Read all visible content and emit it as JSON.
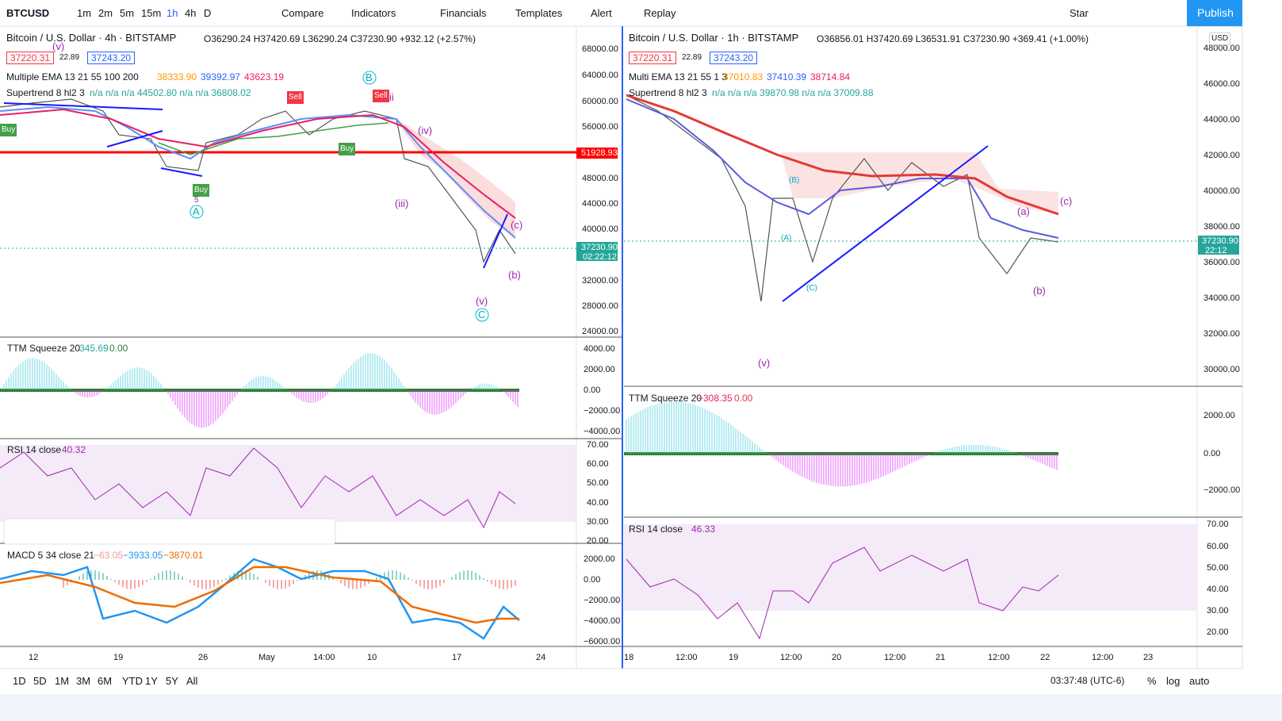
{
  "toolbar": {
    "symbol": "BTCUSD",
    "intervals": [
      "1m",
      "2m",
      "5m",
      "15m",
      "1h",
      "4h",
      "D"
    ],
    "tools": [
      "Compare",
      "Indicators",
      "Financials",
      "Templates",
      "Alert",
      "Replay"
    ],
    "star": "Star",
    "publish": "Publish"
  },
  "left": {
    "header": "Bitcoin / U.S. Dollar · 4h · BITSTAMP",
    "ohlc": "O36290.24 H37420.69 L36290.24 C37230.90 +932.12 (+2.57%)",
    "bid": "37220.31",
    "spread": "22.89",
    "ask": "37243.20",
    "ema": {
      "name": "Multiple EMA 13 21 55 100 200",
      "values": [
        "38333.90",
        "39392.97",
        "43623.19"
      ]
    },
    "supertrend": {
      "name": "Supertrend 8 hl2 3",
      "values": "n/a n/a n/a 44502.80 n/a n/a 36808.02"
    },
    "price_axis": [
      "68000.00",
      "64000.00",
      "60000.00",
      "56000.00",
      "48000.00",
      "44000.00",
      "40000.00",
      "32000.00",
      "28000.00",
      "24000.00"
    ],
    "level_tag": "51928.93",
    "price_tag": "37230.90",
    "countdown": "02:22:12",
    "ttm": {
      "name": "TTM Squeeze 20",
      "values": [
        "345.69",
        "0.00"
      ],
      "axis": [
        "4000.00",
        "2000.00",
        "0.00",
        "−2000.00",
        "−4000.00"
      ]
    },
    "rsi": {
      "name": "RSI 14 close",
      "value": "40.32",
      "axis": [
        "70.00",
        "60.00",
        "50.00",
        "40.00",
        "30.00",
        "20.00"
      ]
    },
    "macd": {
      "name": "MACD 5 34 close 21",
      "values": [
        "−63.05",
        "−3933.05",
        "−3870.01"
      ],
      "axis": [
        "2000.00",
        "0.00",
        "−2000.00",
        "−4000.00",
        "−6000.00"
      ]
    },
    "time_axis": [
      "12",
      "19",
      "26",
      "May",
      "14:00",
      "10",
      "17",
      "24"
    ],
    "annotations": [
      "(v)",
      "B",
      "ii",
      "(iv)",
      "(iii)",
      "(c)",
      "(b)",
      "(v)",
      "C",
      "A",
      "5",
      "Buy",
      "Buy",
      "Buy",
      "Sell",
      "Sell"
    ]
  },
  "right": {
    "header": "Bitcoin / U.S. Dollar · 1h · BITSTAMP",
    "ohlc": "O36856.01 H37420.69 L36531.91 C37230.90 +369.41 (+1.00%)",
    "bid": "37220.31",
    "spread": "22.89",
    "ask": "37243.20",
    "ema": {
      "name": "Multi EMA 13 21 55 1 3",
      "values": [
        "37010.83",
        "37410.39",
        "38714.84"
      ]
    },
    "supertrend": {
      "name": "Supertrend 8 hl2 3",
      "values": "n/a n/a n/a 39870.98 n/a n/a 37009.88"
    },
    "currency": "USD",
    "price_axis": [
      "48000.00",
      "46000.00",
      "44000.00",
      "42000.00",
      "40000.00",
      "38000.00",
      "36000.00",
      "34000.00",
      "32000.00",
      "30000.00"
    ],
    "price_tag": "37230.90",
    "countdown": "22:12",
    "ttm": {
      "name": "TTM Squeeze 20",
      "values": [
        "−308.35",
        "0.00"
      ],
      "axis": [
        "2000.00",
        "0.00",
        "−2000.00"
      ]
    },
    "rsi": {
      "name": "RSI 14 close",
      "value": "46.33",
      "axis": [
        "70.00",
        "60.00",
        "50.00",
        "40.00",
        "30.00",
        "20.00"
      ]
    },
    "time_axis": [
      "18",
      "12:00",
      "19",
      "12:00",
      "20",
      "12:00",
      "21",
      "12:00",
      "22",
      "12:00",
      "23"
    ],
    "annotations": [
      "(v)",
      "(c)",
      "(a)",
      "(b)",
      "(B)",
      "(A)",
      "(C)"
    ]
  },
  "bottom": {
    "ranges": [
      "1D",
      "5D",
      "1M",
      "3M",
      "6M",
      "YTD",
      "1Y",
      "5Y",
      "All"
    ],
    "clock": "03:37:48 (UTC-6)",
    "options": [
      "%",
      "log",
      "auto"
    ]
  }
}
